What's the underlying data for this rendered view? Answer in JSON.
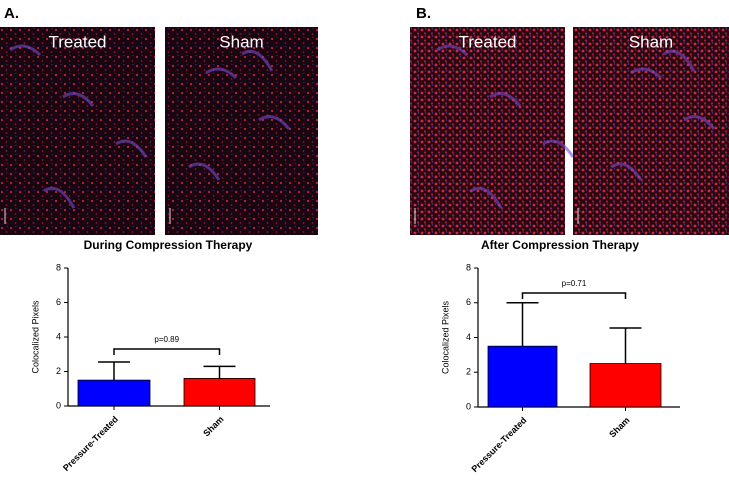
{
  "panels": [
    {
      "label": "A.",
      "images": [
        "Treated",
        "Sham"
      ]
    },
    {
      "label": "B.",
      "images": [
        "Treated",
        "Sham"
      ]
    }
  ],
  "chart_data": [
    {
      "type": "bar",
      "title": "During Compression Therapy",
      "y_label": "Colocalized Pixels",
      "categories": [
        "Pressure-Treated",
        "Sham"
      ],
      "values": [
        1.5,
        1.6
      ],
      "errors": [
        1.05,
        0.7
      ],
      "colors": [
        "#0000ff",
        "#ff0000"
      ],
      "ylim": [
        0,
        8
      ],
      "yticks": [
        0,
        2,
        4,
        6,
        8
      ],
      "annotation": "p=0.89"
    },
    {
      "type": "bar",
      "title": "After Compression Therapy",
      "y_label": "Colocalized Pixels",
      "categories": [
        "Pressure-Treated",
        "Sham"
      ],
      "values": [
        3.5,
        2.5
      ],
      "errors": [
        2.5,
        2.05
      ],
      "colors": [
        "#0000ff",
        "#ff0000"
      ],
      "ylim": [
        0,
        8
      ],
      "yticks": [
        0,
        2,
        4,
        6,
        8
      ],
      "annotation": "p=0.71"
    }
  ]
}
